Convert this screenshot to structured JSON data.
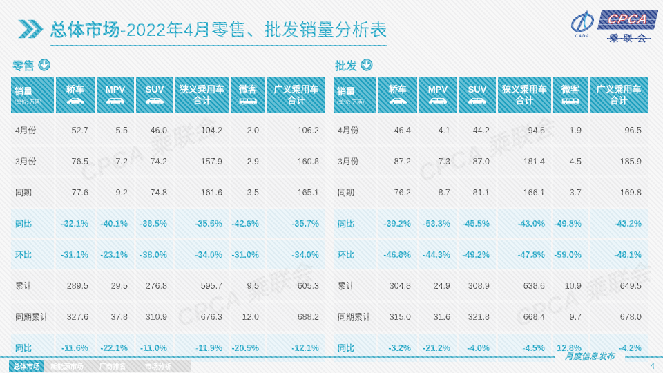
{
  "page": {
    "title_bold": "总体市场",
    "title_rest": "-2022年4月零售、批发销量分析表",
    "page_number": "4"
  },
  "logo": {
    "text": "CPCA",
    "subtext": "乘联会",
    "emblem_text": "CADA"
  },
  "table_columns": {
    "sales_label": "销量",
    "sales_unit": "(单位: 万辆)",
    "cols": [
      {
        "label": "轿车",
        "icon": "sedan-icon"
      },
      {
        "label": "MPV",
        "icon": "mpv-icon"
      },
      {
        "label": "SUV",
        "icon": "suv-icon"
      },
      {
        "label": "狭义乘用车\n合计",
        "icon": null
      },
      {
        "label": "微客",
        "icon": "minibus-icon"
      },
      {
        "label": "广义乘用车\n合计",
        "icon": null
      }
    ]
  },
  "tables": [
    {
      "title": "零售",
      "rows": [
        {
          "label": "4月份",
          "type": "value",
          "values": [
            "52.7",
            "5.5",
            "46.0",
            "104.2",
            "2.0",
            "106.2"
          ]
        },
        {
          "label": "3月份",
          "type": "value",
          "values": [
            "76.5",
            "7.2",
            "74.2",
            "157.9",
            "2.9",
            "160.8"
          ]
        },
        {
          "label": "同期",
          "type": "value",
          "values": [
            "77.6",
            "9.2",
            "74.8",
            "161.6",
            "3.5",
            "165.1"
          ]
        },
        {
          "label": "同比",
          "type": "pct",
          "values": [
            "-32.1%",
            "-40.1%",
            "-38.5%",
            "-35.5%",
            "-42.6%",
            "-35.7%"
          ]
        },
        {
          "label": "环比",
          "type": "pct",
          "values": [
            "-31.1%",
            "-23.1%",
            "-38.0%",
            "-34.0%",
            "-31.0%",
            "-34.0%"
          ]
        },
        {
          "label": "累计",
          "type": "value",
          "values": [
            "289.5",
            "29.5",
            "276.8",
            "595.7",
            "9.5",
            "605.3"
          ]
        },
        {
          "label": "同期累计",
          "type": "value",
          "values": [
            "327.6",
            "37.8",
            "310.9",
            "676.3",
            "12.0",
            "688.2"
          ]
        },
        {
          "label": "同比",
          "type": "pct",
          "values": [
            "-11.6%",
            "-22.1%",
            "-11.0%",
            "-11.9%",
            "-20.5%",
            "-12.1%"
          ]
        }
      ]
    },
    {
      "title": "批发",
      "rows": [
        {
          "label": "4月份",
          "type": "value",
          "values": [
            "46.4",
            "4.1",
            "44.2",
            "94.6",
            "1.9",
            "96.5"
          ]
        },
        {
          "label": "3月份",
          "type": "value",
          "values": [
            "87.2",
            "7.3",
            "87.0",
            "181.4",
            "4.5",
            "185.9"
          ]
        },
        {
          "label": "同期",
          "type": "value",
          "values": [
            "76.2",
            "8.7",
            "81.1",
            "166.1",
            "3.7",
            "169.8"
          ]
        },
        {
          "label": "同比",
          "type": "pct",
          "values": [
            "-39.2%",
            "-53.3%",
            "-45.5%",
            "-43.0%",
            "-49.8%",
            "-43.2%"
          ]
        },
        {
          "label": "环比",
          "type": "pct",
          "values": [
            "-46.8%",
            "-44.3%",
            "-49.2%",
            "-47.8%",
            "-59.0%",
            "-48.1%"
          ]
        },
        {
          "label": "累计",
          "type": "value",
          "values": [
            "304.8",
            "24.9",
            "308.9",
            "638.6",
            "10.9",
            "649.5"
          ]
        },
        {
          "label": "同期累计",
          "type": "value",
          "values": [
            "315.0",
            "31.6",
            "321.8",
            "668.4",
            "9.7",
            "678.0"
          ]
        },
        {
          "label": "同比",
          "type": "pct",
          "values": [
            "-3.2%",
            "-21.2%",
            "-4.0%",
            "-4.5%",
            "12.8%",
            "-4.2%"
          ]
        }
      ]
    }
  ],
  "footer": {
    "tabs": [
      {
        "label": "总体市场",
        "active": true
      },
      {
        "label": "新能源市场",
        "active": false
      },
      {
        "label": "厂商排名",
        "active": false
      },
      {
        "label": "市场分析",
        "active": false
      }
    ],
    "note": "月度信息发布"
  },
  "watermark": "CPCA 乘联会",
  "colors": {
    "teal": "#169fc0",
    "highlight_row": "#e3f1f7",
    "normal_row": "#f0f0f1",
    "logo_blue": "#26418e"
  }
}
